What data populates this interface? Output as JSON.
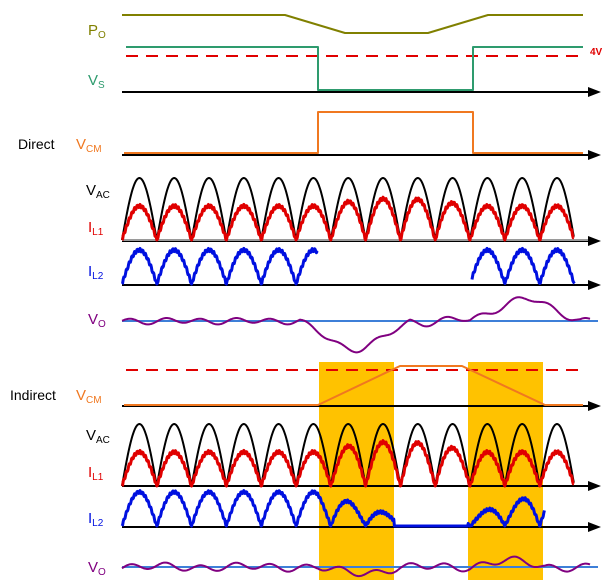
{
  "colors": {
    "po": "#808000",
    "vs": "#2e9b6e",
    "threshold": "#e00000",
    "vcm": "#f07820",
    "vac": "#000000",
    "il1": "#e00000",
    "il2": "#0010e0",
    "vo": "#800080",
    "vo_ref": "#3d7fd8",
    "highlight": "#ffc200",
    "axis": "#000000",
    "baseline_gray": "#9a9a9a"
  },
  "sections": {
    "direct": "Direct",
    "indirect": "Indirect"
  },
  "annotations": {
    "threshold": "4V"
  },
  "signals": {
    "po": {
      "main": "P",
      "sub": "O"
    },
    "vs": {
      "main": "V",
      "sub": "S"
    },
    "vcm": {
      "main": "V",
      "sub": "CM"
    },
    "vac": {
      "main": "V",
      "sub": "AC"
    },
    "il1": {
      "main": "I",
      "sub": "L1"
    },
    "il2": {
      "main": "I",
      "sub": "L2"
    },
    "vo": {
      "main": "V",
      "sub": "O"
    }
  }
}
